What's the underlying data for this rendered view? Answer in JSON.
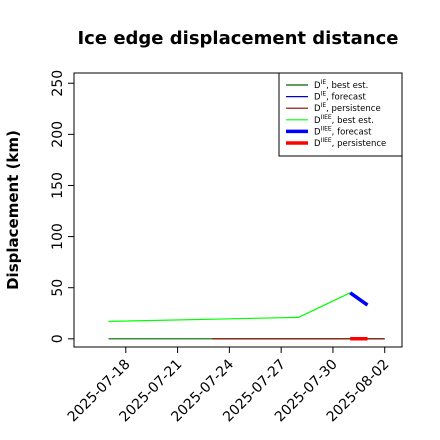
{
  "chart_data": {
    "type": "line",
    "title": "Ice edge displacement distance",
    "xlabel": "",
    "ylabel": "Displacement (km)",
    "x_ticks": [
      "2025-07-18",
      "2025-07-21",
      "2025-07-24",
      "2025-07-27",
      "2025-07-30",
      "2025-08-02"
    ],
    "x_tick_colors": [
      "#000000",
      "#000000",
      "#228b22",
      "#000000",
      "#000000",
      "#000000"
    ],
    "x_range": [
      "2025-07-15",
      "2025-08-03"
    ],
    "y_ticks": [
      0,
      50,
      100,
      150,
      200,
      250
    ],
    "ylim": [
      -8,
      260
    ],
    "grid": false,
    "legend_position": "top-right",
    "series": [
      {
        "name": "D^IE, best est.",
        "legend_base": "D",
        "legend_sup": "IE",
        "legend_rest": ", best est.",
        "color": "#006400",
        "width": 1.2,
        "points": [
          [
            "2025-07-17",
            0
          ],
          [
            "2025-08-02",
            0
          ]
        ]
      },
      {
        "name": "D^IE, forecast",
        "legend_base": "D",
        "legend_sup": "IE",
        "legend_rest": ", forecast",
        "color": "#0000cd",
        "width": 1.2,
        "points": []
      },
      {
        "name": "D^IE, persistence",
        "legend_base": "D",
        "legend_sup": "IE",
        "legend_rest": ", persistence",
        "color": "#8b0000",
        "width": 1.2,
        "points": [
          [
            "2025-07-23",
            0
          ],
          [
            "2025-08-02",
            0
          ]
        ]
      },
      {
        "name": "D^IIEE, best est.",
        "legend_base": "D",
        "legend_sup": "IIEE",
        "legend_rest": ", best est.",
        "color": "#00ff00",
        "width": 1.2,
        "points": [
          [
            "2025-07-17",
            17
          ],
          [
            "2025-07-28",
            21
          ],
          [
            "2025-07-31",
            45
          ]
        ]
      },
      {
        "name": "D^IIEE, forecast",
        "legend_base": "D",
        "legend_sup": "IIEE",
        "legend_rest": ", forecast",
        "color": "#0000ff",
        "width": 3.5,
        "points": [
          [
            "2025-07-31",
            45
          ],
          [
            "2025-08-01",
            33
          ]
        ]
      },
      {
        "name": "D^IIEE, persistence",
        "legend_base": "D",
        "legend_sup": "IIEE",
        "legend_rest": ", persistence",
        "color": "#ff0000",
        "width": 3.5,
        "points": [
          [
            "2025-07-31",
            0
          ],
          [
            "2025-08-01",
            0
          ]
        ]
      }
    ]
  }
}
